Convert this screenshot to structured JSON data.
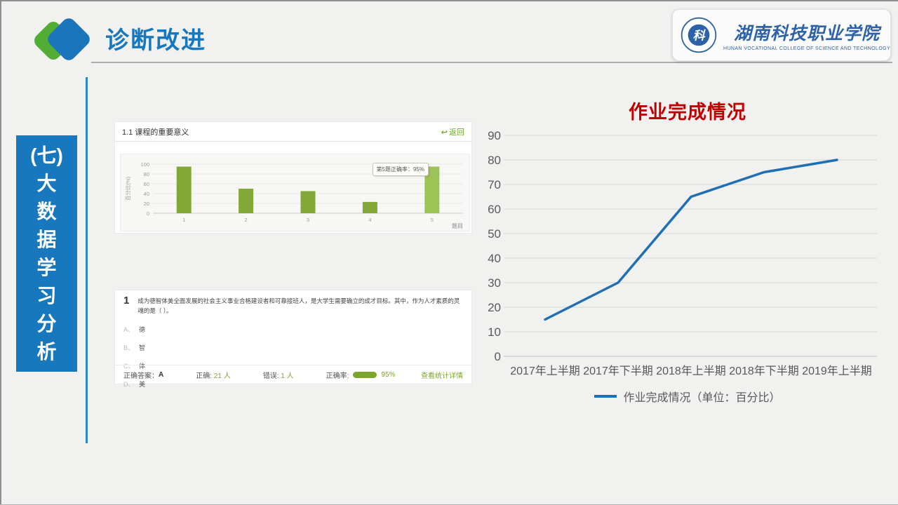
{
  "header": {
    "title": "诊断改进"
  },
  "logo": {
    "college_cn": "湖南科技职业学院",
    "college_en": "HUNAN VOCATIONAL COLLEGE OF SCIENCE AND TECHNOLOGY",
    "emblem_glyph": "科"
  },
  "sidebar": {
    "label": "(七)大数据学习分析",
    "lines": [
      "(七)",
      "大",
      "数",
      "据",
      "学",
      "习",
      "分",
      "析"
    ]
  },
  "screenshot1": {
    "back_label": "返回",
    "back_icon": "↩"
  },
  "screenshot2": {
    "number": "1",
    "question": "成为德智体美全面发展的社会主义事业合格建设者和可靠接班人，是大学生需要确立的成才目标。其中，作为人才素质的灵魂的是（ ）。",
    "options": [
      {
        "letter": "A、",
        "text": "德"
      },
      {
        "letter": "B、",
        "text": "智"
      },
      {
        "letter": "C、",
        "text": "体"
      },
      {
        "letter": "D、",
        "text": "美"
      }
    ],
    "footer": {
      "answer_label": "正确答案：",
      "answer": "A",
      "correct_label": "正确:",
      "correct_value": "21 人",
      "wrong_label": "错误:",
      "wrong_value": "1 人",
      "rate_label": "正确率:",
      "rate_value": "95%",
      "detail_link": "查看统计详情"
    }
  },
  "chart_data": [
    {
      "type": "line",
      "title": "作业完成情况",
      "categories": [
        "2017年上半期",
        "2017年下半期",
        "2018年上半期",
        "2018年下半期",
        "2019年上半期"
      ],
      "series": [
        {
          "name": "作业完成情况（单位：百分比）",
          "values": [
            15,
            30,
            65,
            75,
            80
          ]
        }
      ],
      "ylim": [
        0,
        90
      ],
      "ytick_step": 10,
      "grid": true,
      "legend_position": "bottom",
      "colors": {
        "line": "#1F6FB5",
        "title": "#C00000",
        "tick": "#595959",
        "grid": "#D6D6D6",
        "axis": "#BFBFBF"
      }
    },
    {
      "type": "bar",
      "title": "1.1 课程的重要意义",
      "categories": [
        "1",
        "2",
        "3",
        "4",
        "5"
      ],
      "values": [
        95,
        50,
        45,
        23,
        95
      ],
      "xlabel": "题目",
      "ylabel": "百分比(%)",
      "ylim": [
        0,
        100
      ],
      "ytick_step": 20,
      "highlight_index": 4,
      "tooltip": "第5题正确率：95%",
      "colors": {
        "bar": "#82A838",
        "bar_highlight": "#9CC355",
        "tick": "#9B9B9B",
        "grid": "#E9E9E7",
        "axis": "#CFCFCF"
      }
    }
  ]
}
